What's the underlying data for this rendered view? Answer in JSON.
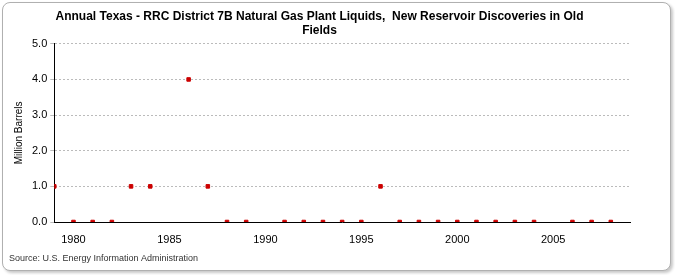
{
  "chart_data": {
    "type": "scatter",
    "title": [
      "Annual Texas - RRC District 7B Natural Gas Plant Liquids,  New Reservoir Discoveries in Old",
      "Fields"
    ],
    "y_label": "Million Barrels",
    "source": "Source: U.S. Energy Information Administration",
    "x": [
      1979,
      1980,
      1981,
      1982,
      1983,
      1984,
      1986,
      1987,
      1988,
      1989,
      1991,
      1992,
      1993,
      1994,
      1995,
      1996,
      1997,
      1998,
      1999,
      2000,
      2001,
      2002,
      2003,
      2004,
      2006,
      2007,
      2008
    ],
    "values": [
      1,
      0,
      0,
      0,
      1,
      1,
      4,
      1,
      0,
      0,
      0,
      0,
      0,
      0,
      0,
      1,
      0,
      0,
      0,
      0,
      0,
      0,
      0,
      0,
      0,
      0,
      0
    ],
    "color": "#cc0000",
    "marker": "square",
    "xlim": [
      1979,
      2009
    ],
    "xticks": [
      1980,
      1985,
      1990,
      1995,
      2000,
      2005
    ],
    "ylim": [
      0,
      5
    ],
    "yticks": [
      {
        "value": 0,
        "label": "0.0"
      },
      {
        "value": 1,
        "label": "1.0"
      },
      {
        "value": 2,
        "label": "2.0"
      },
      {
        "value": 3,
        "label": "3.0"
      },
      {
        "value": 4,
        "label": "4.0"
      },
      {
        "value": 5,
        "label": "5.0"
      }
    ],
    "grid": true
  }
}
